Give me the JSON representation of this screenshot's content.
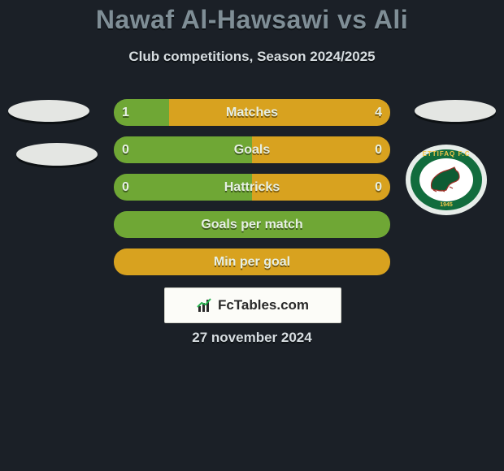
{
  "title": "Nawaf Al-Hawsawi vs Ali",
  "subtitle": "Club competitions, Season 2024/2025",
  "date": "27 november 2024",
  "brand_text": "FcTables.com",
  "colors": {
    "bg": "#1b2027",
    "row_left": "#6fa735",
    "row_right": "#d8a21f",
    "left_accent": "#6fa735",
    "right_accent": "#d8a21f"
  },
  "player_right_badge": {
    "top_text": "ETTIFAQ F.C",
    "bottom_text": "1945",
    "outer": "#e7ede9",
    "ring": "#126c3d",
    "inner": "#ffffff",
    "text_color": "#f2c64a",
    "horse_body": "#0f5c33",
    "horse_stroke": "#a03028"
  },
  "rows": [
    {
      "label": "Matches",
      "left": "1",
      "right": "4",
      "left_pct": 20,
      "right_pct": 80,
      "show_values": true
    },
    {
      "label": "Goals",
      "left": "0",
      "right": "0",
      "left_pct": 50,
      "right_pct": 50,
      "show_values": true
    },
    {
      "label": "Hattricks",
      "left": "0",
      "right": "0",
      "left_pct": 50,
      "right_pct": 50,
      "show_values": true
    },
    {
      "label": "Goals per match",
      "left": "",
      "right": "",
      "left_pct": 100,
      "right_pct": 0,
      "show_values": false
    },
    {
      "label": "Min per goal",
      "left": "",
      "right": "",
      "left_pct": 0,
      "right_pct": 100,
      "show_values": false
    }
  ]
}
